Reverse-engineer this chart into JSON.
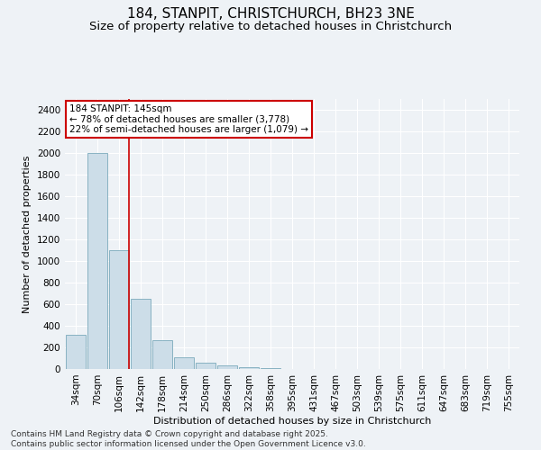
{
  "title1": "184, STANPIT, CHRISTCHURCH, BH23 3NE",
  "title2": "Size of property relative to detached houses in Christchurch",
  "xlabel": "Distribution of detached houses by size in Christchurch",
  "ylabel": "Number of detached properties",
  "categories": [
    "34sqm",
    "70sqm",
    "106sqm",
    "142sqm",
    "178sqm",
    "214sqm",
    "250sqm",
    "286sqm",
    "322sqm",
    "358sqm",
    "395sqm",
    "431sqm",
    "467sqm",
    "503sqm",
    "539sqm",
    "575sqm",
    "611sqm",
    "647sqm",
    "683sqm",
    "719sqm",
    "755sqm"
  ],
  "values": [
    320,
    2000,
    1100,
    650,
    270,
    105,
    55,
    30,
    20,
    5,
    0,
    0,
    0,
    0,
    0,
    0,
    0,
    0,
    0,
    0,
    0
  ],
  "bar_color": "#ccdde8",
  "bar_edge_color": "#7aaabb",
  "vline_x_index": 2,
  "vline_color": "#cc0000",
  "annotation_text": "184 STANPIT: 145sqm\n← 78% of detached houses are smaller (3,778)\n22% of semi-detached houses are larger (1,079) →",
  "annotation_box_edgecolor": "#cc0000",
  "ylim": [
    0,
    2500
  ],
  "yticks": [
    0,
    200,
    400,
    600,
    800,
    1000,
    1200,
    1400,
    1600,
    1800,
    2000,
    2200,
    2400
  ],
  "footer": "Contains HM Land Registry data © Crown copyright and database right 2025.\nContains public sector information licensed under the Open Government Licence v3.0.",
  "bg_color": "#eef2f6",
  "grid_color": "#ffffff",
  "title1_fontsize": 11,
  "title2_fontsize": 9.5,
  "axis_label_fontsize": 8,
  "tick_fontsize": 7.5,
  "annot_fontsize": 7.5,
  "footer_fontsize": 6.5
}
